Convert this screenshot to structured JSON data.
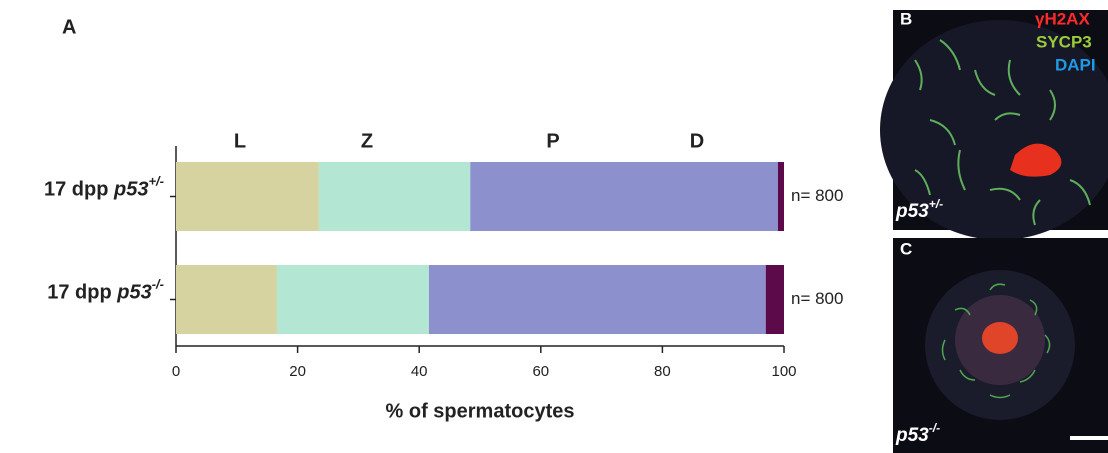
{
  "chart_data": {
    "type": "stacked-barh",
    "panel_label": "A",
    "categories": [
      {
        "prefix": "17 dpp ",
        "gene": "p53",
        "genotype": "+/-"
      },
      {
        "prefix": "17 dpp ",
        "gene": "p53",
        "genotype": "-/-"
      }
    ],
    "series": [
      {
        "name": "L",
        "color": "#d6d3a0",
        "values": [
          23.5,
          16.6
        ]
      },
      {
        "name": "Z",
        "color": "#b4e6d4",
        "values": [
          24.9,
          25.0
        ]
      },
      {
        "name": "P",
        "color": "#8c90cc",
        "values": [
          50.6,
          55.4
        ]
      },
      {
        "name": "D",
        "color": "#5c0a4a",
        "values": [
          1.0,
          3.0
        ]
      }
    ],
    "annotations": [
      "n= 800",
      "n= 800"
    ],
    "xlim": [
      0,
      100
    ],
    "xticks": [
      0,
      20,
      40,
      60,
      80,
      100
    ],
    "xlabel": "% of spermatocytes"
  },
  "micrographs": [
    {
      "panel_label": "B",
      "gene": "p53",
      "genotype": "+/-",
      "stains": [
        {
          "text": "γH2AX",
          "color": "#ff2a2a"
        },
        {
          "text": "SYCP3",
          "color": "#9ccc3c"
        },
        {
          "text": "DAPI",
          "color": "#1e9be6"
        }
      ]
    },
    {
      "panel_label": "C",
      "gene": "p53",
      "genotype": "-/-"
    }
  ]
}
